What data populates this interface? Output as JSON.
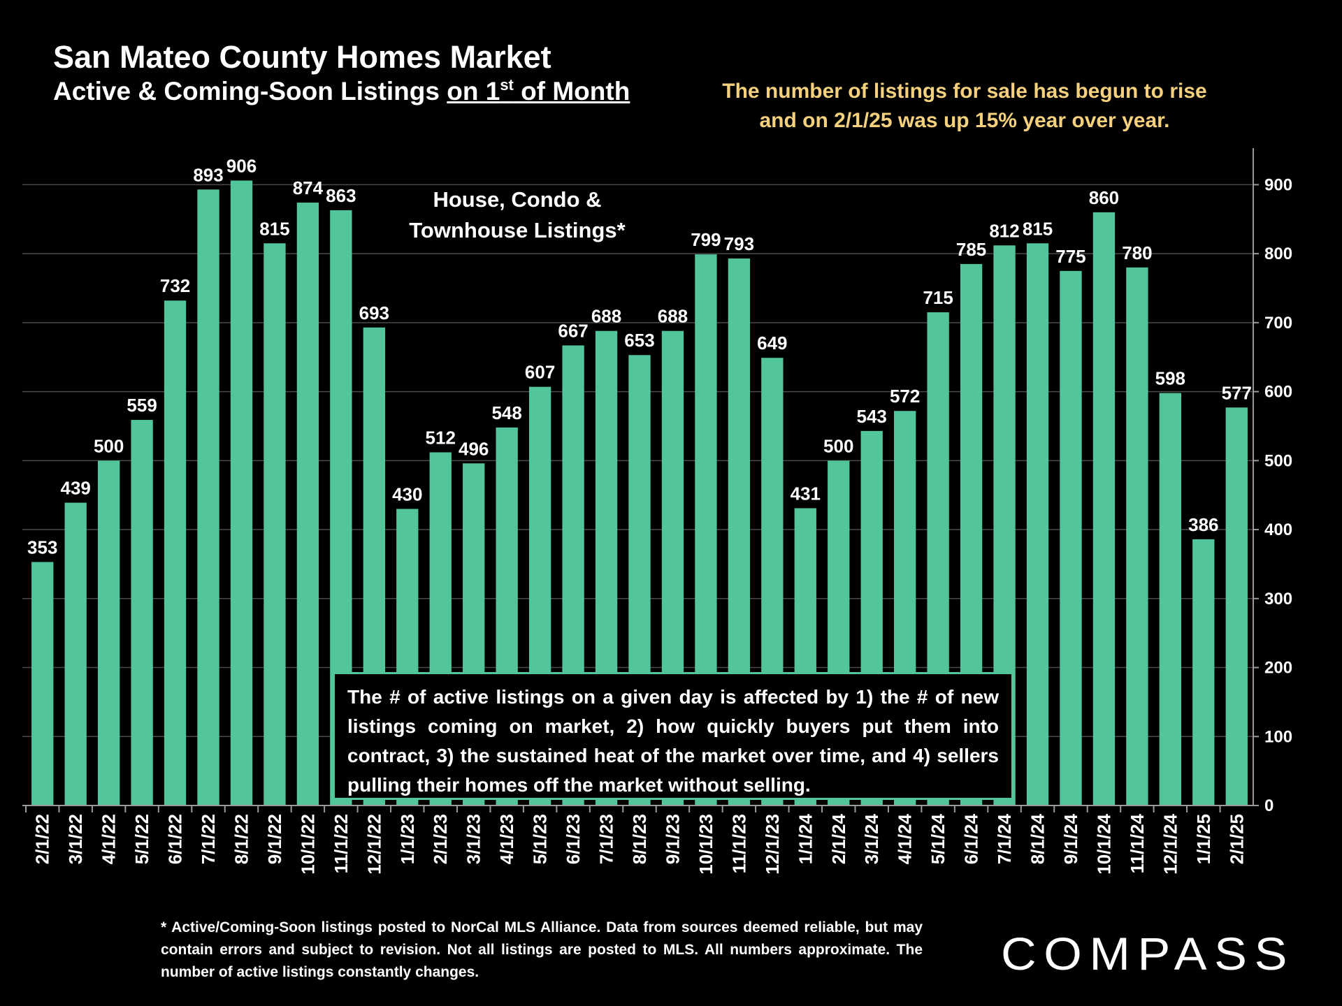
{
  "header": {
    "title": "San Mateo County Homes Market",
    "subtitle_prefix": "Active & Coming-Soon Listings ",
    "subtitle_underlined_a": "on 1",
    "subtitle_superscript": "st",
    "subtitle_underlined_b": " of Month"
  },
  "callout": {
    "line1": "The number of listings for sale has begun to rise",
    "line2": "and on 2/1/25 was up 15% year over year."
  },
  "annotation": {
    "line1": "House, Condo &",
    "line2": "Townhouse Listings*"
  },
  "note_box": {
    "text": "The # of active listings on a given day is affected by 1) the # of new listings coming on market, 2) how quickly buyers put them into contract, 3) the sustained heat of the market over time, and 4) sellers pulling their homes off the market without selling."
  },
  "footnote": {
    "text": "* Active/Coming-Soon listings posted to NorCal MLS Alliance.  Data from sources deemed reliable, but may contain errors and subject to revision.  Not all listings are posted to MLS. All numbers approximate. The number of active listings constantly changes."
  },
  "logo": {
    "text": "COMPASS"
  },
  "colors": {
    "bar": "#52c59a",
    "background": "#000000",
    "callout": "#f5d17e",
    "grid": "#4a4a4a"
  },
  "chart_data": {
    "type": "bar",
    "categories": [
      "2/1/22",
      "3/1/22",
      "4/1/22",
      "5/1/22",
      "6/1/22",
      "7/1/22",
      "8/1/22",
      "9/1/22",
      "10/1/22",
      "11/1/22",
      "12/1/22",
      "1/1/23",
      "2/1/23",
      "3/1/23",
      "4/1/23",
      "5/1/23",
      "6/1/23",
      "7/1/23",
      "8/1/23",
      "9/1/23",
      "10/1/23",
      "11/1/23",
      "12/1/23",
      "1/1/24",
      "2/1/24",
      "3/1/24",
      "4/1/24",
      "5/1/24",
      "6/1/24",
      "7/1/24",
      "8/1/24",
      "9/1/24",
      "10/1/24",
      "11/1/24",
      "12/1/24",
      "1/1/25",
      "2/1/25"
    ],
    "values": [
      353,
      439,
      500,
      559,
      732,
      893,
      906,
      815,
      874,
      863,
      693,
      430,
      512,
      496,
      548,
      607,
      667,
      688,
      653,
      688,
      799,
      793,
      649,
      431,
      500,
      543,
      572,
      715,
      785,
      812,
      815,
      775,
      860,
      780,
      598,
      386,
      577
    ],
    "data_labels": [
      "353",
      "439",
      "500",
      "559",
      "732",
      "893",
      "906",
      "815",
      "874",
      "863",
      "693",
      "430",
      "512",
      "496",
      "548",
      "607",
      "667",
      "688",
      "653",
      "688",
      "799",
      "793",
      "649",
      "431",
      "500",
      "543",
      "572",
      "715",
      "785",
      "812",
      "815",
      "775",
      "860",
      "780",
      "598",
      "386",
      "577"
    ],
    "ylim": [
      0,
      950
    ],
    "yticks": [
      0,
      100,
      200,
      300,
      400,
      500,
      600,
      700,
      800,
      900
    ],
    "ytick_labels": [
      "0",
      "100",
      "200",
      "300",
      "400",
      "500",
      "600",
      "700",
      "800",
      "900"
    ],
    "y_axis_side": "right",
    "grid": true,
    "legend": "none"
  }
}
